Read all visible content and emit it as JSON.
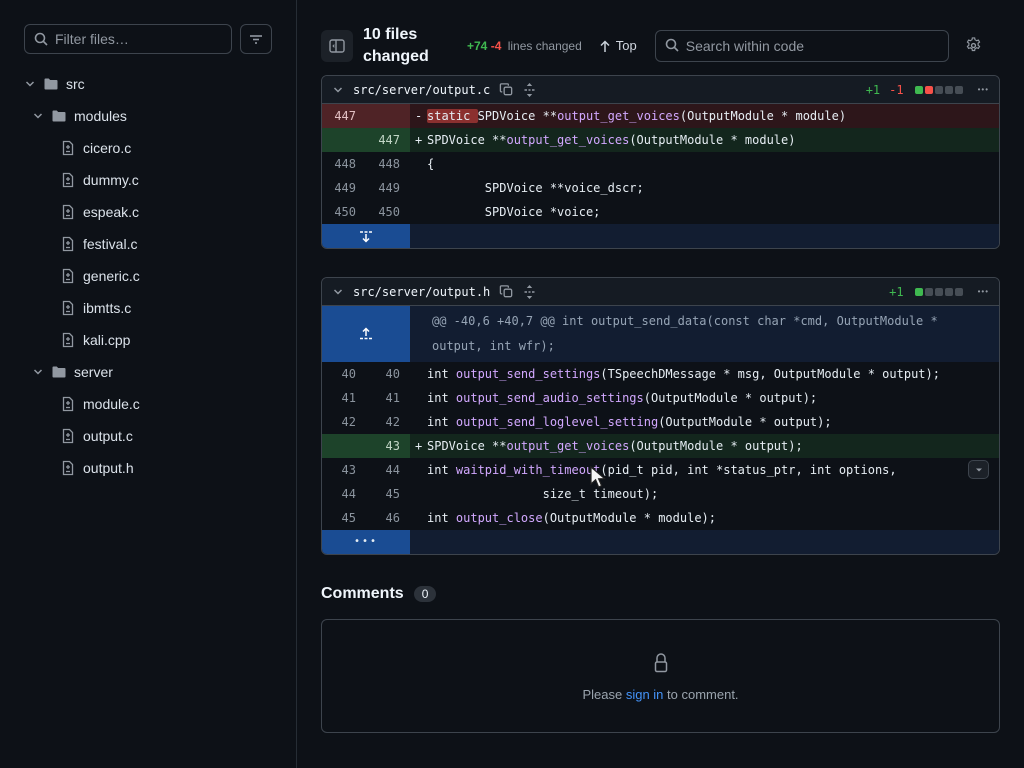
{
  "sidebar": {
    "filter_placeholder": "Filter files…",
    "tree": [
      {
        "label": "src",
        "kind": "folder",
        "level": 0,
        "expanded": true
      },
      {
        "label": "modules",
        "kind": "folder",
        "level": 1,
        "expanded": true
      },
      {
        "label": "cicero.c",
        "kind": "file",
        "level": 2
      },
      {
        "label": "dummy.c",
        "kind": "file",
        "level": 2
      },
      {
        "label": "espeak.c",
        "kind": "file",
        "level": 2
      },
      {
        "label": "festival.c",
        "kind": "file",
        "level": 2
      },
      {
        "label": "generic.c",
        "kind": "file",
        "level": 2
      },
      {
        "label": "ibmtts.c",
        "kind": "file",
        "level": 2
      },
      {
        "label": "kali.cpp",
        "kind": "file",
        "level": 2
      },
      {
        "label": "server",
        "kind": "folder",
        "level": 1,
        "expanded": true
      },
      {
        "label": "module.c",
        "kind": "file",
        "level": 2
      },
      {
        "label": "output.c",
        "kind": "file",
        "level": 2
      },
      {
        "label": "output.h",
        "kind": "file",
        "level": 2
      }
    ]
  },
  "header": {
    "files_changed": "10 files changed",
    "added": "+74",
    "removed": "-4",
    "lines_changed_label": "lines changed",
    "top_label": "Top",
    "search_placeholder": "Search within code"
  },
  "colors": {
    "added": "#3fb950",
    "removed": "#f85149",
    "neutral_square": "#464d55",
    "link": "#4493f8"
  },
  "diffs": [
    {
      "path": "src/server/output.c",
      "added": "+1",
      "removed": "-1",
      "squares": [
        "added",
        "removed",
        "neutral",
        "neutral",
        "neutral"
      ],
      "rows": [
        {
          "kind": "del",
          "old": "447",
          "new": "",
          "sign": "-",
          "code": [
            [
              "static ",
              "dw"
            ],
            [
              "SPDVoice **",
              "p"
            ],
            [
              "output_get_voices",
              "f"
            ],
            [
              "(OutputModule * module)",
              "p"
            ]
          ]
        },
        {
          "kind": "add",
          "old": "",
          "new": "447",
          "sign": "+",
          "code": [
            [
              "SPDVoice **",
              "p"
            ],
            [
              "output_get_voices",
              "f"
            ],
            [
              "(OutputModule * module)",
              "p"
            ]
          ]
        },
        {
          "kind": "ctx",
          "old": "448",
          "new": "448",
          "sign": "",
          "code": [
            [
              "{",
              "p"
            ]
          ]
        },
        {
          "kind": "ctx",
          "old": "449",
          "new": "449",
          "sign": "",
          "code": [
            [
              "        SPDVoice **voice_dscr;",
              "p"
            ]
          ]
        },
        {
          "kind": "ctx",
          "old": "450",
          "new": "450",
          "sign": "",
          "code": [
            [
              "        SPDVoice *voice;",
              "p"
            ]
          ]
        },
        {
          "kind": "expand",
          "icon": "expand-down"
        }
      ]
    },
    {
      "path": "src/server/output.h",
      "added": "+1",
      "removed": "",
      "squares": [
        "added",
        "neutral",
        "neutral",
        "neutral",
        "neutral"
      ],
      "rows": [
        {
          "kind": "hunk",
          "icon": "expand-up",
          "text": "@@ -40,6 +40,7 @@ int output_send_data(const char *cmd, OutputModule * output, int wfr);"
        },
        {
          "kind": "ctx",
          "old": "40",
          "new": "40",
          "sign": "",
          "code": [
            [
              "int ",
              "p"
            ],
            [
              "output_send_settings",
              "f"
            ],
            [
              "(TSpeechDMessage * msg, OutputModule * output);",
              "p"
            ]
          ]
        },
        {
          "kind": "ctx",
          "old": "41",
          "new": "41",
          "sign": "",
          "code": [
            [
              "int ",
              "p"
            ],
            [
              "output_send_audio_settings",
              "f"
            ],
            [
              "(OutputModule * output);",
              "p"
            ]
          ]
        },
        {
          "kind": "ctx",
          "old": "42",
          "new": "42",
          "sign": "",
          "code": [
            [
              "int ",
              "p"
            ],
            [
              "output_send_loglevel_setting",
              "f"
            ],
            [
              "(OutputModule * output);",
              "p"
            ]
          ]
        },
        {
          "kind": "add",
          "old": "",
          "new": "43",
          "sign": "+",
          "code": [
            [
              "SPDVoice **",
              "p"
            ],
            [
              "output_get_voices",
              "f"
            ],
            [
              "(OutputModule * output);",
              "p"
            ]
          ]
        },
        {
          "kind": "ctx",
          "old": "43",
          "new": "44",
          "sign": "",
          "code": [
            [
              "int ",
              "p"
            ],
            [
              "waitpid_with_timeout",
              "f"
            ],
            [
              "(pid_t pid, int *status_ptr, int options,",
              "p"
            ]
          ],
          "hover_button": true
        },
        {
          "kind": "ctx",
          "old": "44",
          "new": "45",
          "sign": "",
          "code": [
            [
              "                size_t timeout);",
              "p"
            ]
          ]
        },
        {
          "kind": "ctx",
          "old": "45",
          "new": "46",
          "sign": "",
          "code": [
            [
              "int ",
              "p"
            ],
            [
              "output_close",
              "f"
            ],
            [
              "(OutputModule * module);",
              "p"
            ]
          ]
        },
        {
          "kind": "expand",
          "icon": "expand-dots",
          "dots": "•••"
        }
      ]
    }
  ],
  "comments": {
    "title": "Comments",
    "count": "0",
    "notice_prefix": "Please ",
    "sign_in_link": "sign in",
    "notice_suffix": " to comment."
  }
}
